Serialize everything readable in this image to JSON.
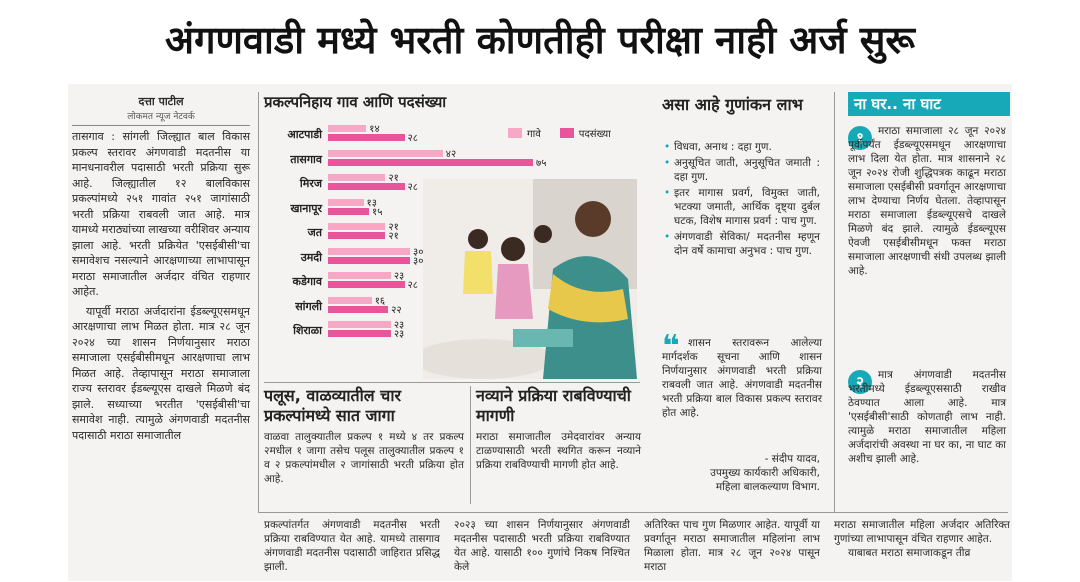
{
  "headline": "अंगणवाडी मध्ये भरती कोणतीही परीक्षा नाही अर्ज सुरू",
  "left_column": {
    "byline": "दत्ता पाटील",
    "subline": "लोकमत न्यूज नेटवर्क",
    "text": "तासगाव : सांगली जिल्ह्यात बाल विकास प्रकल्प स्तरावर अंगणवाडी मदतनीस या मानधनावरील पदासाठी भरती प्रक्रिया सुरू आहे. जिल्ह्यातील १२ बालविकास प्रकल्पांमध्ये २५१ गावांत २५१ जागांसाठी भरती प्रक्रिया राबवली जात आहे. मात्र यामध्ये मराठ्यांच्या लाखच्या वरीशिवर अन्याय झाला आहे. भरती प्रक्रियेत 'एसईबीसी'चा समावेशच नसल्याने आरक्षणाच्या लाभापासून मराठा समाजातील अर्जदार वंचित राहणार आहेत.",
    "text2": "यापूर्वी मराठा अर्जदारांना ईडब्ल्यूएसमधून आरक्षणाचा लाभ मिळत होता. मात्र २८ जून २०२४ च्या शासन निर्णयानुसार मराठा समाजाला एसईबीसीमधून आरक्षणाचा लाभ मिळत आहे. तेव्हापासून मराठा समाजाला राज्य स्तरावर ईडब्ल्यूएस दाखले मिळणे बंद झाले. सध्याच्या भरतीत 'एसईबीसी'चा समावेश नाही. त्यामुळे अंगणवाडी मदतनीस पदासाठी मराठा समाजातील"
  },
  "chart": {
    "title": "प्रकल्पनिहाय गाव आणि पदसंख्या",
    "legend": {
      "villages": "गावे",
      "posts": "पदसंख्या"
    },
    "colors": {
      "villages": "#f6a8c6",
      "posts": "#e8559a"
    }
  },
  "chart_data": {
    "type": "bar",
    "title": "प्रकल्पनिहाय गाव आणि पदसंख्या",
    "categories": [
      "आटपाडी",
      "तासगाव",
      "मिरज",
      "खानापूर",
      "जत",
      "उमदी",
      "कडेगाव",
      "सांगली",
      "शिराळा"
    ],
    "series": [
      {
        "name": "गावे",
        "values": [
          14,
          42,
          21,
          13,
          21,
          30,
          23,
          16,
          23
        ],
        "labels": [
          "१४",
          "४२",
          "२१",
          "१३",
          "२१",
          "३०",
          "२३",
          "१६",
          "२३"
        ]
      },
      {
        "name": "पदसंख्या",
        "values": [
          28,
          75,
          28,
          15,
          21,
          30,
          28,
          22,
          23
        ],
        "labels": [
          "२८",
          "७५",
          "२८",
          "१५",
          "२१",
          "३०",
          "२८",
          "२२",
          "२३"
        ]
      }
    ],
    "xlim": [
      0,
      75
    ],
    "legend_position": "top-right"
  },
  "bottom_mid": {
    "left_title": "पलूस, वाळव्यातील चार प्रकल्पांमध्ये सात जागा",
    "left_text": "वाळवा तालुक्यातील प्रकल्प १ मध्ये ४ तर प्रकल्प २मधील १ जागा तसेच पलूस तालुक्यातील प्रकल्प १ व २ प्रकल्पांमधील २ जागांसाठी भरती प्रक्रिया होत आहे.",
    "right_title": "नव्याने प्रक्रिया राबविण्याची मागणी",
    "right_text": "मराठा समाजातील उमेदवारांवर अन्याय टाळण्यासाठी भरती स्थगित करून नव्याने प्रक्रिया राबविण्याची मागणी होत आहे."
  },
  "scoring": {
    "title": "असा आहे गुणांकन लाभ",
    "bullets": [
      "विधवा, अनाथ : दहा गुण.",
      "अनुसूचित जाती, अनुसूचित जमाती : दहा गुण.",
      "इतर मागास प्रवर्ग, विमुक्त जाती, भटक्या जमाती, आर्थिक दृष्ट्या दुर्बल घटक, विशेष मागास प्रवर्ग : पाच गुण.",
      "अंगणवाडी सेविका/ मदतनीस म्हणून दोन वर्षे कामाचा अनुभव : पाच गुण."
    ],
    "quote": "शासन स्तरावरून आलेल्या मार्गदर्शक सूचना आणि शासन निर्णयानुसार अंगणवाडी भरती प्रक्रिया राबवली जात आहे. अंगणवाडी मदतनीस भरती प्रक्रिया बाल विकास प्रकल्प स्तरावर होत आहे.",
    "quote_author": "- संदीप यादव,",
    "quote_role1": "उपमुख्य कार्यकारी अधिकारी,",
    "quote_role2": "महिला बालकल्याण विभाग."
  },
  "sidebar": {
    "title": "ना घर.. ना घाट",
    "point1_num": "१",
    "point1": "मराठा समाजाला २८ जून २०२४ पूर्वीपर्यंत ईडब्ल्यूएसमधून आरक्षणाचा लाभ दिला येत होता. मात्र शासनाने २८ जून २०२४ रोजी शुद्धिपत्रक काढून मराठा समाजाला एसईबीसी प्रवर्गातून आरक्षणाचा लाभ देण्याचा निर्णय घेतला. तेव्हापासून मराठा समाजाला ईडब्ल्यूएसचे दाखले मिळणे बंद झाले. त्यामुळे ईडब्ल्यूएस ऐवजी एसईबीसीमधून फक्त मराठा समाजाला आरक्षणाची संधी उपलब्ध झाली आहे.",
    "point2_num": "२",
    "point2": "मात्र अंगणवाडी मदतनीस भरतीमध्ये ईडब्ल्यूएससाठी राखीव ठेवण्यात आला आहे. मात्र 'एसईबीसी'साठी कोणताही लाभ नाही. त्यामुळे मराठा समाजातील महिला अर्जदारांची अवस्था ना घर का, ना घाट का अशीच झाली आहे."
  },
  "bottom_row": {
    "c1": "प्रकल्पांतर्गत अंगणवाडी मदतनीस भरती प्रक्रिया राबविण्यात येत आहे. यामध्ये तासगाव अंगणवाडी मदतनीस पदासाठी जाहिरात प्रसिद्ध झाली.",
    "c2": "२०२३ च्या शासन निर्णयानुसार अंगणवाडी मदतनीस पदासाठी भरती प्रक्रिया राबविण्यात येत आहे. यासाठी १०० गुणांचे निकष निश्चित केले",
    "c3": "अतिरिक्त पाच गुण मिळणार आहेत. यापूर्वी या प्रवर्गातून मराठा समाजातील महिलांना लाभ मिळाला होता. मात्र २८ जून २०२४ पासून मराठा",
    "c4": "मराठा समाजातील महिला अर्जदार अतिरिक्त गुणांच्या लाभापासून वंचित राहणार आहेत.",
    "c4b": "याबाबत मराठा समाजाकडून तीव्र"
  }
}
